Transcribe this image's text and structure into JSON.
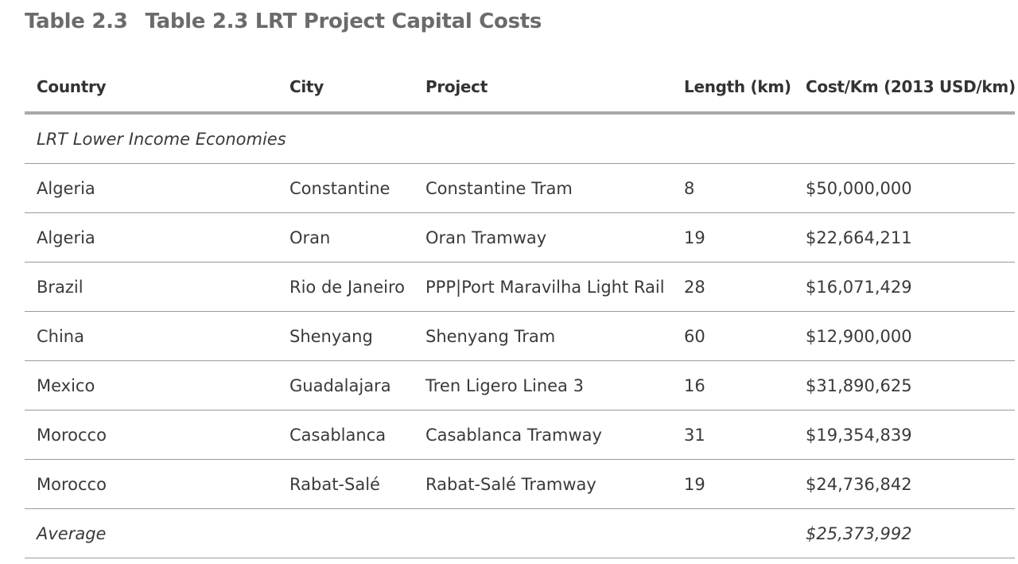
{
  "title": {
    "number": "Table 2.3",
    "text": "Table 2.3 LRT Project Capital Costs"
  },
  "table": {
    "headers": {
      "country": "Country",
      "city": "City",
      "project": "Project",
      "length": "Length (km)",
      "cost": "Cost/Km (2013 USD/km)"
    },
    "section_label": "LRT Lower Income Economies",
    "rows": [
      {
        "country": "Algeria",
        "city": "Constantine",
        "project": "Constantine Tram",
        "length": "8",
        "cost": "$50,000,000"
      },
      {
        "country": "Algeria",
        "city": "Oran",
        "project": "Oran Tramway",
        "length": "19",
        "cost": "$22,664,211"
      },
      {
        "country": "Brazil",
        "city": "Rio de Janeiro",
        "project": "PPP|Port Maravilha Light Rail",
        "length": "28",
        "cost": "$16,071,429"
      },
      {
        "country": "China",
        "city": "Shenyang",
        "project": "Shenyang Tram",
        "length": "60",
        "cost": "$12,900,000"
      },
      {
        "country": "Mexico",
        "city": "Guadalajara",
        "project": "Tren Ligero Linea 3",
        "length": "16",
        "cost": "$31,890,625"
      },
      {
        "country": "Morocco",
        "city": "Casablanca",
        "project": "Casablanca Tramway",
        "length": "31",
        "cost": "$19,354,839"
      },
      {
        "country": "Morocco",
        "city": "Rabat-Salé",
        "project": "Rabat-Salé Tramway",
        "length": "19",
        "cost": "$24,736,842"
      }
    ],
    "average": {
      "label": "Average",
      "cost": "$25,373,992"
    }
  }
}
